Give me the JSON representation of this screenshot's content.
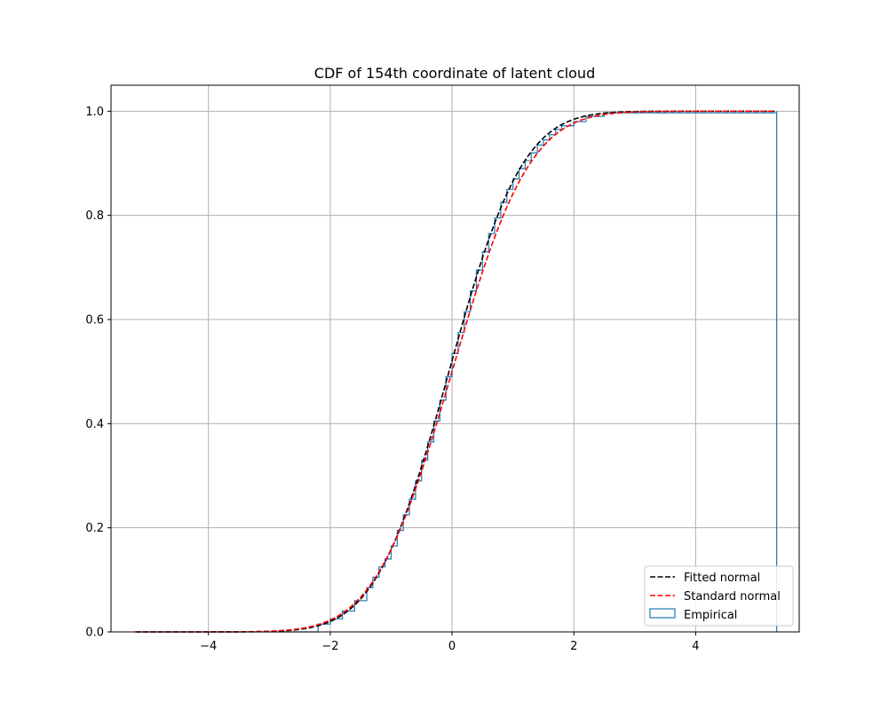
{
  "chart_data": {
    "type": "line",
    "title": "CDF of 154th coordinate of latent cloud",
    "xlabel": "",
    "ylabel": "",
    "xlim": [
      -5.6,
      5.7
    ],
    "ylim": [
      0.0,
      1.05
    ],
    "xticks": [
      -4,
      -2,
      0,
      2,
      4
    ],
    "yticks": [
      0.0,
      0.2,
      0.4,
      0.6,
      0.8,
      1.0
    ],
    "xtick_labels": [
      "−4",
      "−2",
      "0",
      "2",
      "4"
    ],
    "ytick_labels": [
      "0.0",
      "0.2",
      "0.4",
      "0.6",
      "0.8",
      "1.0"
    ],
    "grid": true,
    "legend_position": "lower-right",
    "legend": [
      {
        "label": "Fitted normal",
        "color": "#000000",
        "style": "dashed"
      },
      {
        "label": "Standard normal",
        "color": "#ff0000",
        "style": "dashed"
      },
      {
        "label": "Empirical",
        "color": "#1f77b4",
        "style": "step"
      }
    ],
    "series": [
      {
        "name": "Fitted normal",
        "color": "#000000",
        "kind": "normal-cdf",
        "mean": -0.05,
        "std": 0.95,
        "x_range": [
          -5.2,
          5.3
        ]
      },
      {
        "name": "Standard normal",
        "color": "#ff0000",
        "kind": "normal-cdf",
        "mean": 0.0,
        "std": 1.0,
        "x_range": [
          -5.2,
          5.3
        ]
      },
      {
        "name": "Empirical",
        "color": "#1f77b4",
        "kind": "step",
        "x": [
          -5.2,
          -2.2,
          -2.0,
          -1.8,
          -1.6,
          -1.4,
          -1.3,
          -1.2,
          -1.1,
          -1.0,
          -0.9,
          -0.8,
          -0.7,
          -0.6,
          -0.5,
          -0.4,
          -0.3,
          -0.2,
          -0.1,
          0.0,
          0.1,
          0.2,
          0.3,
          0.4,
          0.5,
          0.6,
          0.7,
          0.8,
          0.9,
          1.0,
          1.1,
          1.2,
          1.3,
          1.4,
          1.5,
          1.6,
          1.7,
          1.8,
          2.0,
          2.2,
          2.5,
          5.33
        ],
        "y": [
          0.0,
          0.015,
          0.025,
          0.04,
          0.06,
          0.085,
          0.105,
          0.125,
          0.14,
          0.165,
          0.195,
          0.225,
          0.255,
          0.29,
          0.33,
          0.365,
          0.405,
          0.445,
          0.49,
          0.535,
          0.575,
          0.615,
          0.655,
          0.695,
          0.73,
          0.765,
          0.795,
          0.825,
          0.85,
          0.87,
          0.89,
          0.905,
          0.92,
          0.935,
          0.945,
          0.955,
          0.965,
          0.972,
          0.98,
          0.99,
          0.997,
          1.0
        ]
      }
    ]
  },
  "colors": {
    "grid": "#b0b0b0",
    "axes": "#000000",
    "empirical": "#1f77b4",
    "fitted": "#000000",
    "standard": "#ff0000"
  }
}
